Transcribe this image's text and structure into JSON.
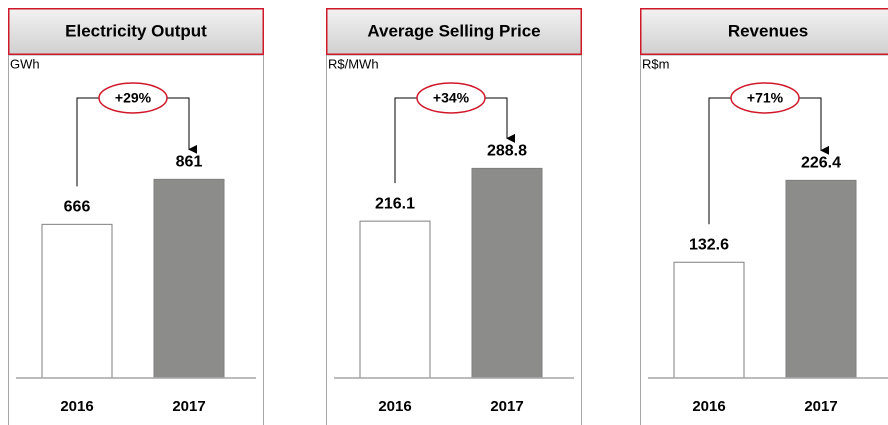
{
  "chart_data": [
    {
      "type": "bar",
      "title": "Electricity Output",
      "unit": "GWh",
      "annotation": "+29%",
      "categories": [
        "2016",
        "2017"
      ],
      "values": [
        666,
        861
      ],
      "colors": [
        "#ffffff",
        "#8c8c8a"
      ],
      "ylim": [
        0,
        1400
      ]
    },
    {
      "type": "bar",
      "title": "Average Selling Price",
      "unit": "R$/MWh",
      "annotation": "+34%",
      "categories": [
        "2016",
        "2017"
      ],
      "values": [
        216.1,
        288.8
      ],
      "colors": [
        "#ffffff",
        "#8c8c8a"
      ],
      "ylim": [
        0,
        445
      ]
    },
    {
      "type": "bar",
      "title": "Revenues",
      "unit": "R$m",
      "annotation": "+71%",
      "categories": [
        "2016",
        "2017"
      ],
      "values": [
        132.6,
        226.4
      ],
      "colors": [
        "#ffffff",
        "#8c8c8a"
      ],
      "ylim": [
        0,
        370
      ]
    }
  ]
}
